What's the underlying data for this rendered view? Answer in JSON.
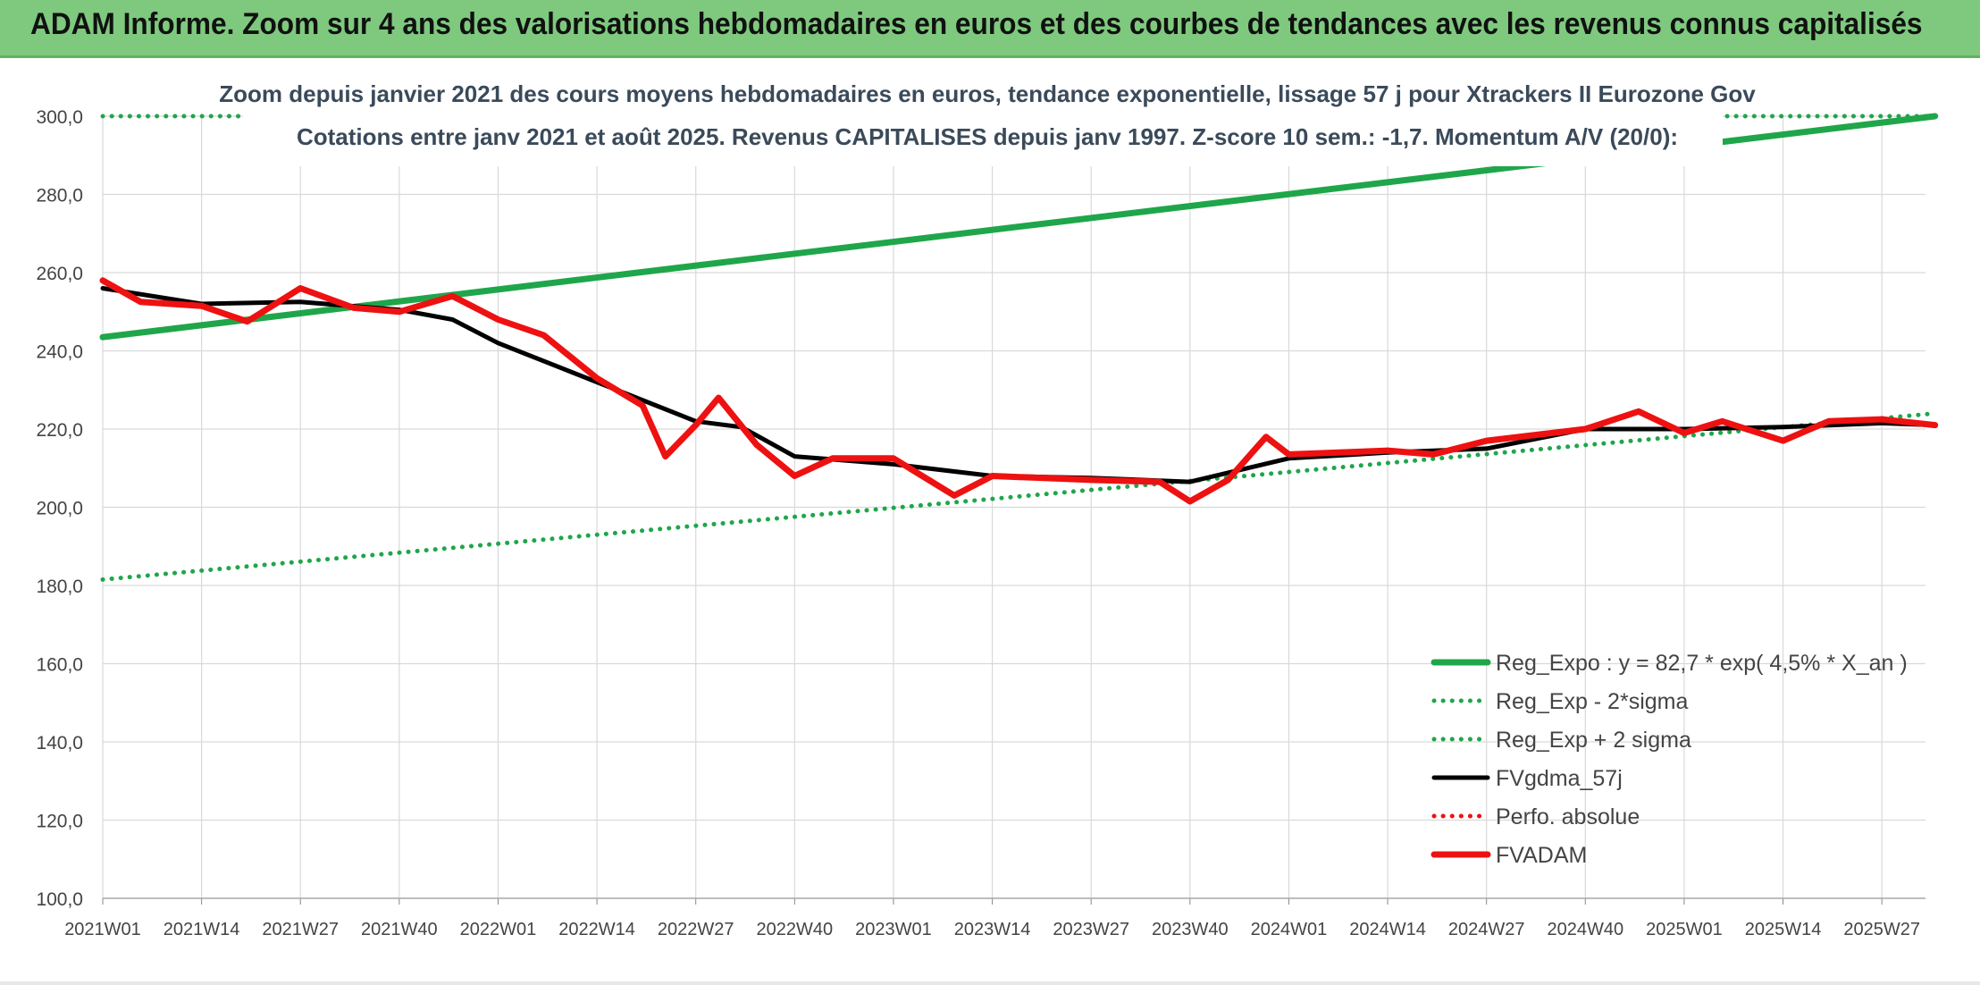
{
  "banner": {
    "title": "ADAM Informe. Zoom sur 4 ans des valorisations hebdomadaires en euros et des courbes de tendances avec les revenus connus capitalisés"
  },
  "chart_data": {
    "type": "line",
    "title": "Zoom depuis janvier 2021 des cours moyens hebdomadaires en euros, tendance exponentielle, lissage 57 j pour Xtrackers II Eurozone Gov",
    "subtitle": "Cotations entre janv 2021 et août 2025. Revenus CAPITALISES depuis janv 1997. Z-score 10 sem.: -1,7. Momentum A/V (20/0):",
    "xlabel": "",
    "ylabel": "",
    "ylim": [
      100,
      300
    ],
    "yticks": [
      "100,0",
      "120,0",
      "140,0",
      "160,0",
      "180,0",
      "200,0",
      "220,0",
      "240,0",
      "260,0",
      "280,0",
      "300,0"
    ],
    "x_tick_labels": [
      "2021W01",
      "2021W14",
      "2021W27",
      "2021W40",
      "2022W01",
      "2022W14",
      "2022W27",
      "2022W40",
      "2023W01",
      "2023W14",
      "2023W27",
      "2023W40",
      "2024W01",
      "2024W14",
      "2024W27",
      "2024W40",
      "2025W01",
      "2025W14",
      "2025W27"
    ],
    "grid": true,
    "legend_position": "bottom-right",
    "series": [
      {
        "name": "Reg_Expo : y = 82,7 * exp( 4,5% *  X_an )",
        "color": "#1fa64a",
        "style": "solid-thick",
        "x": [
          "2021W01",
          "2025W34"
        ],
        "values": [
          243.5,
          300.0
        ]
      },
      {
        "name": "Reg_Exp - 2*sigma",
        "color": "#1fa64a",
        "style": "dotted",
        "x": [
          "2021W01",
          "2025W34"
        ],
        "values": [
          181.5,
          224.0
        ]
      },
      {
        "name": "Reg_Exp + 2 sigma",
        "color": "#1fa64a",
        "style": "dotted",
        "x": [
          "2021W01",
          "2025W34"
        ],
        "values": [
          300.0,
          300.0
        ]
      },
      {
        "name": "FVgdma_57j",
        "color": "#000000",
        "style": "solid",
        "x": [
          "2021W01",
          "2021W14",
          "2021W27",
          "2021W40",
          "2021W47",
          "2022W01",
          "2022W14",
          "2022W27",
          "2022W33",
          "2022W40",
          "2023W01",
          "2023W14",
          "2023W27",
          "2023W40",
          "2024W01",
          "2024W14",
          "2024W27",
          "2024W40",
          "2025W01",
          "2025W14",
          "2025W27",
          "2025W34"
        ],
        "values": [
          256.0,
          252.0,
          252.5,
          250.5,
          248.0,
          242.0,
          232.0,
          222.0,
          220.5,
          213.0,
          211.0,
          208.0,
          207.5,
          206.5,
          212.5,
          214.0,
          215.0,
          220.0,
          220.0,
          220.5,
          221.5,
          221.0
        ]
      },
      {
        "name": "Perfo. absolue",
        "color": "#ee1111",
        "style": "dotted",
        "x": [],
        "values": []
      },
      {
        "name": "FVADAM",
        "color": "#ee1111",
        "style": "solid-thick",
        "x": [
          "2021W01",
          "2021W06",
          "2021W14",
          "2021W20",
          "2021W27",
          "2021W34",
          "2021W40",
          "2021W47",
          "2022W01",
          "2022W07",
          "2022W14",
          "2022W20",
          "2022W23",
          "2022W27",
          "2022W30",
          "2022W35",
          "2022W40",
          "2022W45",
          "2023W01",
          "2023W09",
          "2023W14",
          "2023W27",
          "2023W36",
          "2023W40",
          "2023W45",
          "2023W50",
          "2024W01",
          "2024W14",
          "2024W20",
          "2024W27",
          "2024W40",
          "2024W47",
          "2025W01",
          "2025W06",
          "2025W14",
          "2025W20",
          "2025W27",
          "2025W34"
        ],
        "values": [
          258.0,
          252.5,
          251.5,
          247.5,
          256.0,
          251.0,
          250.0,
          254.0,
          248.0,
          244.0,
          233.0,
          226.0,
          213.0,
          221.0,
          228.0,
          216.0,
          208.0,
          212.5,
          212.5,
          203.0,
          208.0,
          207.0,
          206.5,
          201.5,
          207.0,
          218.0,
          213.5,
          214.5,
          213.5,
          217.0,
          220.0,
          224.5,
          219.0,
          222.0,
          217.0,
          222.0,
          222.5,
          221.0
        ]
      }
    ]
  }
}
